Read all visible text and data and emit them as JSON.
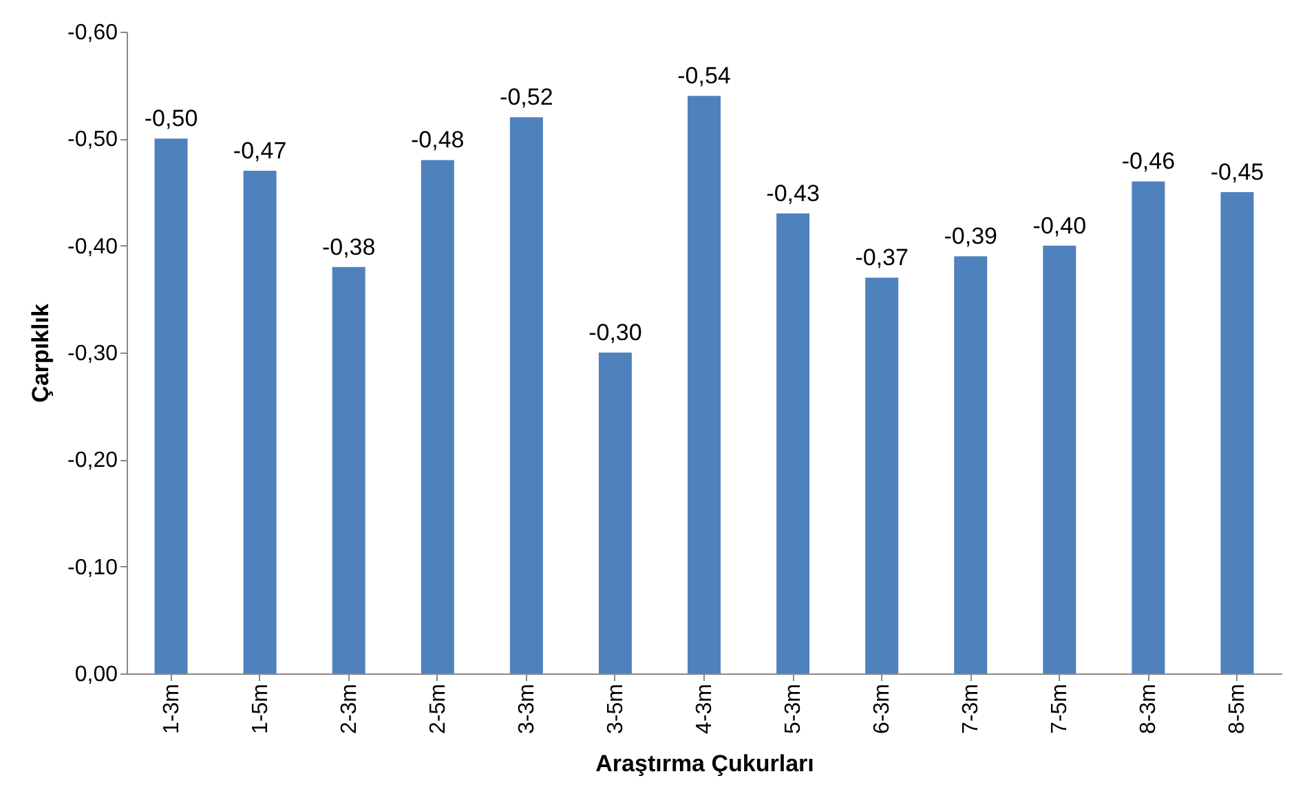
{
  "chart_data": {
    "type": "bar",
    "xlabel": "Araştırma Çukurları",
    "ylabel": "Çarpıklık",
    "categories": [
      "1-3m",
      "1-5m",
      "2-3m",
      "2-5m",
      "3-3m",
      "3-5m",
      "4-3m",
      "5-3m",
      "6-3m",
      "7-3m",
      "7-5m",
      "8-3m",
      "8-5m"
    ],
    "values": [
      -0.5,
      -0.47,
      -0.38,
      -0.48,
      -0.52,
      -0.3,
      -0.54,
      -0.43,
      -0.37,
      -0.39,
      -0.4,
      -0.46,
      -0.45
    ],
    "value_labels": [
      "-0,50",
      "-0,47",
      "-0,38",
      "-0,48",
      "-0,52",
      "-0,30",
      "-0,54",
      "-0,43",
      "-0,37",
      "-0,39",
      "-0,40",
      "-0,46",
      "-0,45"
    ],
    "color": "#4f81bd",
    "ylim": [
      0,
      -0.6
    ],
    "yticks": [
      {
        "value": 0,
        "label": "0,00"
      },
      {
        "value": -0.1,
        "label": "-0,10"
      },
      {
        "value": -0.2,
        "label": "-0,20"
      },
      {
        "value": -0.3,
        "label": "-0,30"
      },
      {
        "value": -0.4,
        "label": "-0,40"
      },
      {
        "value": -0.5,
        "label": "-0,50"
      },
      {
        "value": -0.6,
        "label": "-0,60"
      }
    ],
    "grid": false
  }
}
